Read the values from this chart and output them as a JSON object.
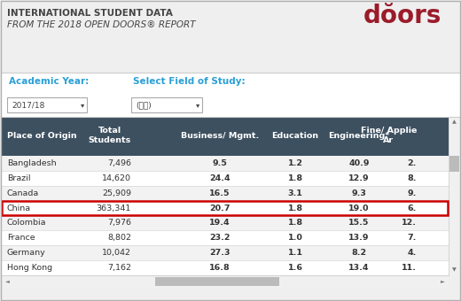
{
  "title_line1": "INTERNATIONAL STUDENT DATA",
  "title_line2": "FROM THE 2018 OPEN DOORS® REPORT",
  "logo_text": "dŏors",
  "academic_year_label": "Academic Year:",
  "academic_year_value": "2017/18",
  "field_label": "Select Field of Study:",
  "field_value": "(全部)",
  "header_bg": "#3d5060",
  "header_text_color": "#ffffff",
  "row_colors": [
    "#f2f2f2",
    "#ffffff"
  ],
  "highlight_row": 3,
  "highlight_border": "#cc0000",
  "top_bg": "#efefef",
  "filter_bg": "#ffffff",
  "table_bg": "#ffffff",
  "columns": [
    "Place of Origin",
    "Total\nStudents",
    "Business/ Mgmt.",
    "Education",
    "Engineering*",
    "Fine/ Applie\nAr"
  ],
  "rows": [
    [
      "Bangladesh",
      "7,496",
      "9.5",
      "1.2",
      "40.9",
      "2."
    ],
    [
      "Brazil",
      "14,620",
      "24.4",
      "1.8",
      "12.9",
      "8."
    ],
    [
      "Canada",
      "25,909",
      "16.5",
      "3.1",
      "9.3",
      "9."
    ],
    [
      "China",
      "363,341",
      "20.7",
      "1.8",
      "19.0",
      "6."
    ],
    [
      "Colombia",
      "7,976",
      "19.4",
      "1.8",
      "15.5",
      "12."
    ],
    [
      "France",
      "8,802",
      "23.2",
      "1.0",
      "13.9",
      "7."
    ],
    [
      "Germany",
      "10,042",
      "27.3",
      "1.1",
      "8.2",
      "4."
    ],
    [
      "Hong Kong",
      "7,162",
      "16.8",
      "1.6",
      "13.4",
      "11."
    ]
  ],
  "logo_color": "#9b1b2a",
  "label_color": "#2a9fd6",
  "separator_color": "#cccccc",
  "outer_border": "#b0b0b0",
  "title_fontsize": 7.5,
  "header_fontsize": 6.8,
  "cell_fontsize": 6.8,
  "label_fontsize": 7.5,
  "logo_fontsize": 20
}
